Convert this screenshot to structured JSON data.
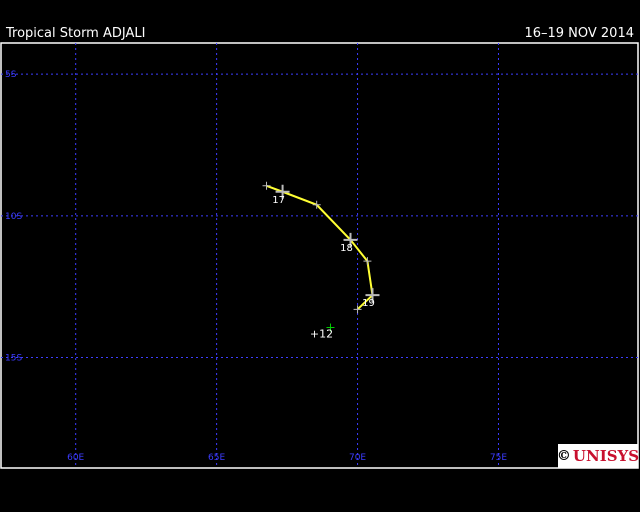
{
  "header": {
    "title": "Tropical Storm ADJALI",
    "dates": "16–19 NOV 2014"
  },
  "map": {
    "lon_range": [
      57.35,
      79.95
    ],
    "lat_range": [
      -3.9,
      -18.9
    ],
    "lon_ticks": [
      {
        "value": 60,
        "label": "60E"
      },
      {
        "value": 65,
        "label": "65E"
      },
      {
        "value": 70,
        "label": "70E"
      },
      {
        "value": 75,
        "label": "75E"
      }
    ],
    "lat_ticks": [
      {
        "value": -5,
        "label": "5S"
      },
      {
        "value": -10,
        "label": "10S"
      },
      {
        "value": -15,
        "label": "15S"
      }
    ],
    "grid_color": "#3c3cff",
    "track_color": "#ffff33",
    "track": [
      {
        "lon": 66.77,
        "lat": -8.94,
        "label": ""
      },
      {
        "lon": 67.34,
        "lat": -9.15,
        "label": "17"
      },
      {
        "lon": 68.55,
        "lat": -9.61,
        "label": ""
      },
      {
        "lon": 69.75,
        "lat": -10.85,
        "label": "18"
      },
      {
        "lon": 70.35,
        "lat": -11.6,
        "label": ""
      },
      {
        "lon": 70.53,
        "lat": -12.8,
        "label": "19"
      },
      {
        "lon": 70.0,
        "lat": -13.3,
        "label": ""
      }
    ],
    "forecast_marker": {
      "lon": 69.04,
      "lat": -13.94,
      "label": "+12",
      "color": "#00cc00"
    }
  },
  "logo": {
    "copyright": "©",
    "text": "UNISYS"
  }
}
